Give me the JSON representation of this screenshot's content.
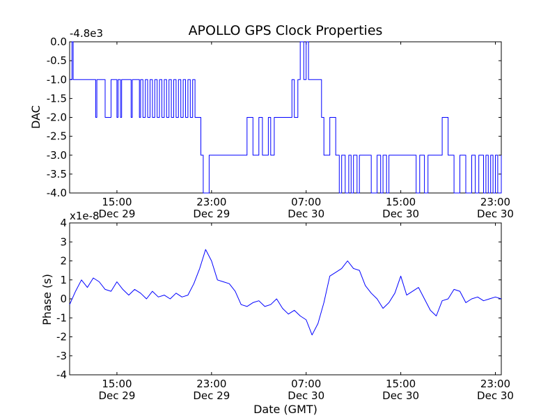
{
  "figure_title": "APOLLO GPS Clock Properties",
  "chart_data": [
    {
      "type": "line",
      "title": "APOLLO GPS Clock Properties",
      "ylabel": "DAC",
      "xlabel": "",
      "offset_text": "-4.8e3",
      "ylim": [
        -4.0,
        0.0
      ],
      "yticks": [
        0.0,
        -0.5,
        -1.0,
        -1.5,
        -2.0,
        -2.5,
        -3.0,
        -3.5,
        -4.0
      ],
      "ytick_labels": [
        "0.0",
        "-0.5",
        "-1.0",
        "-1.5",
        "-2.0",
        "-2.5",
        "-3.0",
        "-3.5",
        "-4.0"
      ],
      "xlim_hours": [
        11.0,
        23.5
      ],
      "xticks": [
        {
          "hour": 15,
          "time": "15:00",
          "date": "Dec 29"
        },
        {
          "hour": 23,
          "time": "23:00",
          "date": "Dec 29"
        },
        {
          "hour": 31,
          "time": "07:00",
          "date": "Dec 30"
        },
        {
          "hour": 39,
          "time": "15:00",
          "date": "Dec 30"
        },
        {
          "hour": 47,
          "time": "23:00",
          "date": "Dec 30"
        }
      ],
      "xlim": [
        11.0,
        47.5
      ],
      "series": [
        {
          "name": "DAC",
          "x": [
            11.0,
            11.2,
            11.3,
            11.5,
            11.6,
            13.0,
            13.2,
            13.3,
            13.5,
            14.0,
            14.2,
            14.5,
            14.7,
            15.0,
            15.1,
            15.3,
            15.4,
            16.0,
            16.2,
            16.3,
            16.5,
            16.9,
            17.0,
            17.2,
            17.4,
            17.6,
            17.8,
            18.0,
            18.2,
            18.4,
            18.6,
            18.8,
            19.0,
            19.2,
            19.4,
            19.6,
            19.8,
            20.0,
            20.2,
            20.4,
            20.6,
            20.8,
            21.0,
            21.2,
            21.4,
            21.6,
            22.0,
            22.1,
            22.3,
            22.6,
            22.8,
            23.5,
            25.0,
            26.0,
            26.5,
            27.0,
            27.3,
            27.8,
            28.0,
            28.3,
            28.5,
            29.5,
            29.8,
            30.0,
            30.3,
            30.5,
            30.8,
            31.0,
            31.2,
            31.5,
            32.0,
            32.3,
            32.5,
            33.0,
            33.5,
            33.8,
            34.0,
            34.3,
            34.6,
            34.8,
            35.0,
            35.3,
            35.5,
            35.8,
            36.2,
            36.5,
            37.0,
            37.3,
            37.5,
            37.8,
            38.0,
            39.0,
            40.0,
            40.3,
            40.6,
            41.0,
            41.3,
            41.6,
            42.0,
            42.2,
            42.5,
            43.0,
            43.3,
            43.5,
            44.0,
            44.3,
            44.5,
            45.0,
            45.3,
            45.6,
            46.0,
            46.2,
            46.4,
            46.6,
            46.8,
            47.0,
            47.2,
            47.5
          ],
          "values": [
            -1.0,
            0.0,
            -1.0,
            -1.0,
            -1.0,
            -1.0,
            -2.0,
            -1.0,
            -1.0,
            -2.0,
            -2.0,
            -1.0,
            -1.0,
            -2.0,
            -1.0,
            -2.0,
            -1.0,
            -1.0,
            -2.0,
            -1.0,
            -1.0,
            -2.0,
            -1.0,
            -2.0,
            -1.0,
            -2.0,
            -1.0,
            -2.0,
            -1.0,
            -2.0,
            -1.0,
            -2.0,
            -1.0,
            -2.0,
            -1.0,
            -2.0,
            -1.0,
            -2.0,
            -1.0,
            -2.0,
            -1.0,
            -2.0,
            -1.0,
            -2.0,
            -1.0,
            -2.0,
            -2.0,
            -3.0,
            -4.0,
            -4.0,
            -3.0,
            -3.0,
            -3.0,
            -2.0,
            -3.0,
            -2.0,
            -3.0,
            -2.0,
            -3.0,
            -2.0,
            -2.0,
            -2.0,
            -1.0,
            -2.0,
            -1.0,
            0.0,
            -1.0,
            0.0,
            -1.0,
            -1.0,
            -1.0,
            -2.0,
            -3.0,
            -2.0,
            -3.0,
            -4.0,
            -3.0,
            -4.0,
            -3.0,
            -4.0,
            -3.0,
            -4.0,
            -3.0,
            -3.0,
            -3.0,
            -4.0,
            -3.0,
            -4.0,
            -3.0,
            -4.0,
            -3.0,
            -3.0,
            -3.0,
            -4.0,
            -3.0,
            -4.0,
            -3.0,
            -3.0,
            -3.0,
            -3.0,
            -2.0,
            -3.0,
            -3.0,
            -4.0,
            -3.0,
            -3.0,
            -4.0,
            -3.0,
            -4.0,
            -3.0,
            -4.0,
            -3.0,
            -4.0,
            -3.0,
            -4.0,
            -3.0,
            -4.0,
            -3.0
          ]
        }
      ]
    },
    {
      "type": "line",
      "title": "",
      "ylabel": "Phase (s)",
      "xlabel": "Date (GMT)",
      "offset_text": "x1e-8",
      "ylim": [
        -4,
        4
      ],
      "yticks": [
        4,
        3,
        2,
        1,
        0,
        -1,
        -2,
        -3,
        -4
      ],
      "ytick_labels": [
        "4",
        "3",
        "2",
        "1",
        "0",
        "-1",
        "-2",
        "-3",
        "-4"
      ],
      "xticks": [
        {
          "hour": 15,
          "time": "15:00",
          "date": "Dec 29"
        },
        {
          "hour": 23,
          "time": "23:00",
          "date": "Dec 29"
        },
        {
          "hour": 31,
          "time": "07:00",
          "date": "Dec 30"
        },
        {
          "hour": 39,
          "time": "15:00",
          "date": "Dec 30"
        },
        {
          "hour": 47,
          "time": "23:00",
          "date": "Dec 30"
        }
      ],
      "xlim": [
        11.0,
        47.5
      ],
      "series": [
        {
          "name": "Phase",
          "x": [
            11.0,
            11.5,
            12.0,
            12.5,
            13.0,
            13.5,
            14.0,
            14.5,
            15.0,
            15.5,
            16.0,
            16.5,
            17.0,
            17.5,
            18.0,
            18.5,
            19.0,
            19.5,
            20.0,
            20.5,
            21.0,
            21.5,
            22.0,
            22.5,
            23.0,
            23.5,
            24.0,
            24.5,
            25.0,
            25.5,
            26.0,
            26.5,
            27.0,
            27.5,
            28.0,
            28.5,
            29.0,
            29.5,
            30.0,
            30.5,
            31.0,
            31.5,
            32.0,
            32.5,
            33.0,
            33.5,
            34.0,
            34.5,
            35.0,
            35.5,
            36.0,
            36.5,
            37.0,
            37.5,
            38.0,
            38.5,
            39.0,
            39.5,
            40.0,
            40.5,
            41.0,
            41.5,
            42.0,
            42.5,
            43.0,
            43.5,
            44.0,
            44.5,
            45.0,
            45.5,
            46.0,
            46.5,
            47.0,
            47.5
          ],
          "values": [
            -0.3,
            0.4,
            1.0,
            0.6,
            1.1,
            0.9,
            0.5,
            0.4,
            0.9,
            0.5,
            0.2,
            0.5,
            0.3,
            0.0,
            0.4,
            0.1,
            0.2,
            0.0,
            0.3,
            0.1,
            0.2,
            0.8,
            1.6,
            2.6,
            2.0,
            1.0,
            0.9,
            0.8,
            0.4,
            -0.3,
            -0.4,
            -0.2,
            -0.1,
            -0.4,
            -0.3,
            0.0,
            -0.5,
            -0.8,
            -0.6,
            -0.9,
            -1.1,
            -1.9,
            -1.3,
            -0.2,
            1.2,
            1.4,
            1.6,
            2.0,
            1.6,
            1.5,
            0.7,
            0.3,
            0.0,
            -0.5,
            -0.2,
            0.3,
            1.2,
            0.2,
            0.4,
            0.6,
            0.0,
            -0.6,
            -0.9,
            -0.1,
            0.0,
            0.5,
            0.4,
            -0.2,
            0.0,
            0.1,
            -0.1,
            0.0,
            0.1,
            0.0
          ]
        }
      ]
    }
  ]
}
